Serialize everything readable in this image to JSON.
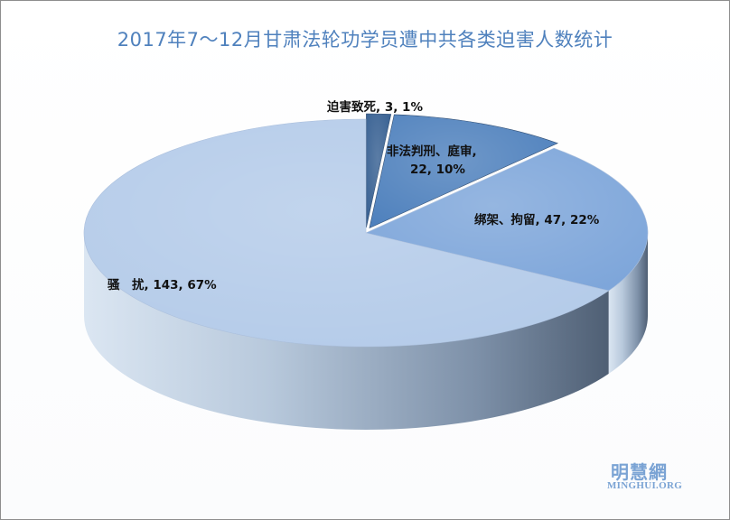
{
  "chart_data": {
    "type": "pie",
    "style": "3d-pie",
    "title": "2017年7～12月甘肃法轮功学员遭中共各类迫害人数统计",
    "slices": [
      {
        "label": "迫害致死",
        "value": 3,
        "percent": "1%",
        "display": "迫害致死, 3, 1%",
        "color": "#376092",
        "exploded": true
      },
      {
        "label": "非法判刑、庭审",
        "value": 22,
        "percent": "10%",
        "display_lines": [
          "非法判刑、庭审,",
          "22, 10%"
        ],
        "color": "#4f81bd",
        "exploded": true
      },
      {
        "label": "绑架、拘留",
        "value": 47,
        "percent": "22%",
        "display": "绑架、拘留, 47, 22%",
        "color": "#7ea6da",
        "exploded": false
      },
      {
        "label": "骚 扰",
        "value": 143,
        "percent": "67%",
        "display": "骚　扰, 143, 67%",
        "color": "#b4cbe9",
        "exploded": false
      }
    ],
    "legend": "none",
    "data_labels": true
  },
  "watermark": {
    "chinese": "明慧網",
    "english": "MINGHUI.ORG",
    "color": "#7aa3d4"
  }
}
